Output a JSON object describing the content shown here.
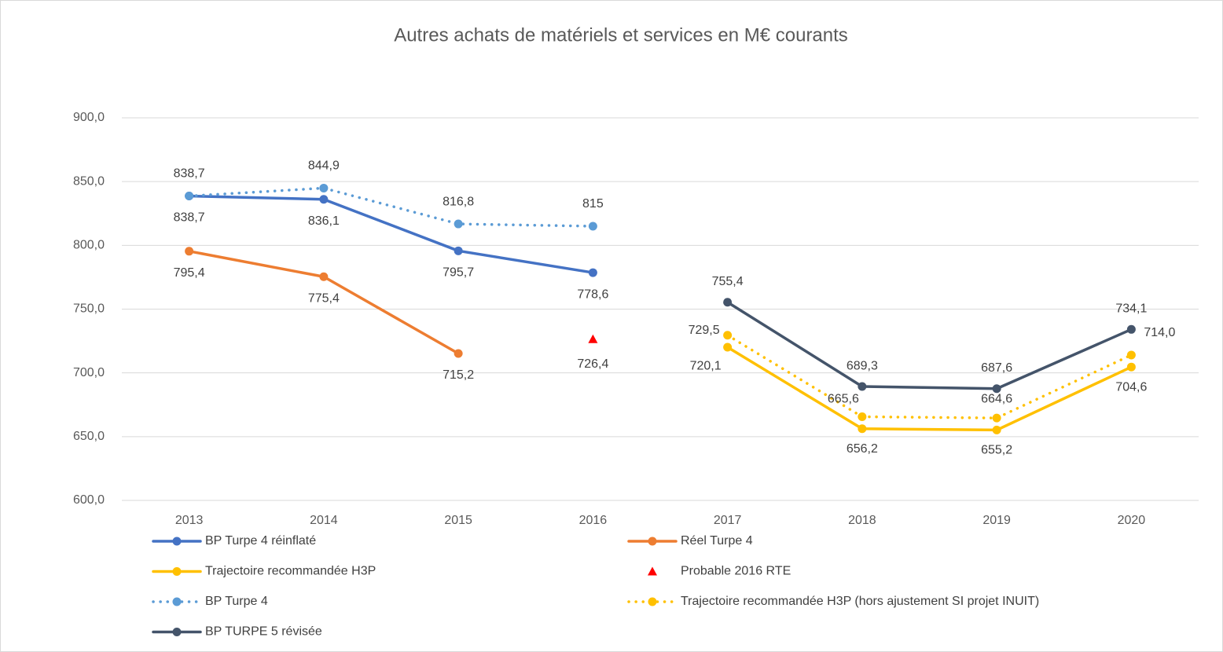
{
  "chart_data": {
    "type": "line",
    "title": "Autres achats de matériels et services en M€ courants",
    "categories": [
      "2013",
      "2014",
      "2015",
      "2016",
      "2017",
      "2018",
      "2019",
      "2020"
    ],
    "ylim": [
      600,
      900
    ],
    "yticks": [
      {
        "value": 600,
        "label": "600,0"
      },
      {
        "value": 650,
        "label": "650,0"
      },
      {
        "value": 700,
        "label": "700,0"
      },
      {
        "value": 750,
        "label": "750,0"
      },
      {
        "value": 800,
        "label": "800,0"
      },
      {
        "value": 850,
        "label": "850,0"
      },
      {
        "value": 900,
        "label": "900,0"
      }
    ],
    "grid": true,
    "legend": "bottom",
    "series": [
      {
        "name": "BP Turpe 4 réinflaté",
        "color": "#4472c4",
        "dash": "solid",
        "marker": "circle",
        "values": [
          838.7,
          836.1,
          795.7,
          778.6,
          null,
          null,
          null,
          null
        ],
        "value_labels": [
          "838,7",
          "836,1",
          "795,7",
          "778,6",
          null,
          null,
          null,
          null
        ]
      },
      {
        "name": "Réel Turpe 4",
        "color": "#ed7d31",
        "dash": "solid",
        "marker": "circle",
        "values": [
          795.4,
          775.4,
          715.2,
          null,
          null,
          null,
          null,
          null
        ],
        "value_labels": [
          "795,4",
          "775,4",
          "715,2",
          null,
          null,
          null,
          null,
          null
        ]
      },
      {
        "name": "Trajectoire recommandée H3P",
        "color": "#ffc000",
        "dash": "solid",
        "marker": "circle",
        "values": [
          null,
          null,
          null,
          null,
          720.1,
          656.2,
          655.2,
          704.6
        ],
        "value_labels": [
          null,
          null,
          null,
          null,
          "720,1",
          "656,2",
          "655,2",
          "704,6"
        ]
      },
      {
        "name": "Probable 2016 RTE",
        "color": "#ff0000",
        "dash": "none",
        "marker": "triangle",
        "values": [
          null,
          null,
          null,
          726.4,
          null,
          null,
          null,
          null
        ],
        "value_labels": [
          null,
          null,
          null,
          "726,4",
          null,
          null,
          null,
          null
        ]
      },
      {
        "name": "BP Turpe 4",
        "color": "#5b9bd5",
        "dash": "dot",
        "marker": "circle",
        "values": [
          838.7,
          844.9,
          816.8,
          815,
          null,
          null,
          null,
          null
        ],
        "value_labels": [
          "838,7",
          "844,9",
          "816,8",
          "815",
          null,
          null,
          null,
          null
        ]
      },
      {
        "name": "Trajectoire recommandée H3P (hors ajustement SI projet INUIT)",
        "color": "#ffc000",
        "dash": "dot",
        "marker": "circle",
        "values": [
          null,
          null,
          null,
          null,
          729.5,
          665.6,
          664.6,
          714.0
        ],
        "value_labels": [
          null,
          null,
          null,
          null,
          "729,5",
          "665,6",
          "664,6",
          "714,0"
        ]
      },
      {
        "name": "BP TURPE 5 révisée",
        "color": "#44546a",
        "dash": "solid",
        "marker": "circle",
        "values": [
          null,
          null,
          null,
          null,
          755.4,
          689.3,
          687.6,
          734.1
        ],
        "value_labels": [
          null,
          null,
          null,
          null,
          "755,4",
          "689,3",
          "687,6",
          "734,1"
        ]
      }
    ]
  }
}
